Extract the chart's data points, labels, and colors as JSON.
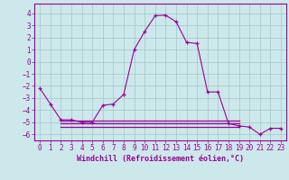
{
  "xlabel": "Windchill (Refroidissement éolien,°C)",
  "bg_color": "#cce8ea",
  "grid_color": "#aacccc",
  "line_color": "#990099",
  "xlim": [
    -0.5,
    23.5
  ],
  "ylim": [
    -6.5,
    4.8
  ],
  "yticks": [
    -6,
    -5,
    -4,
    -3,
    -2,
    -1,
    0,
    1,
    2,
    3,
    4
  ],
  "xticks": [
    0,
    1,
    2,
    3,
    4,
    5,
    6,
    7,
    8,
    9,
    10,
    11,
    12,
    13,
    14,
    15,
    16,
    17,
    18,
    19,
    20,
    21,
    22,
    23
  ],
  "main_x": [
    0,
    1,
    2,
    3,
    4,
    5,
    6,
    7,
    8,
    9,
    10,
    11,
    12,
    13,
    14,
    15,
    16,
    17,
    18,
    19,
    20,
    21,
    22,
    23
  ],
  "main_y": [
    -2.2,
    -3.5,
    -4.8,
    -4.8,
    -5.0,
    -5.0,
    -3.6,
    -3.5,
    -2.7,
    1.0,
    2.5,
    3.8,
    3.85,
    3.3,
    1.6,
    1.5,
    -2.5,
    -2.5,
    -5.1,
    -5.3,
    -5.4,
    -6.0,
    -5.5,
    -5.5
  ],
  "flat_lines": [
    {
      "x": [
        2,
        19
      ],
      "y": -4.85
    },
    {
      "x": [
        2,
        19
      ],
      "y": -5.1
    },
    {
      "x": [
        2,
        19
      ],
      "y": -5.35
    }
  ]
}
